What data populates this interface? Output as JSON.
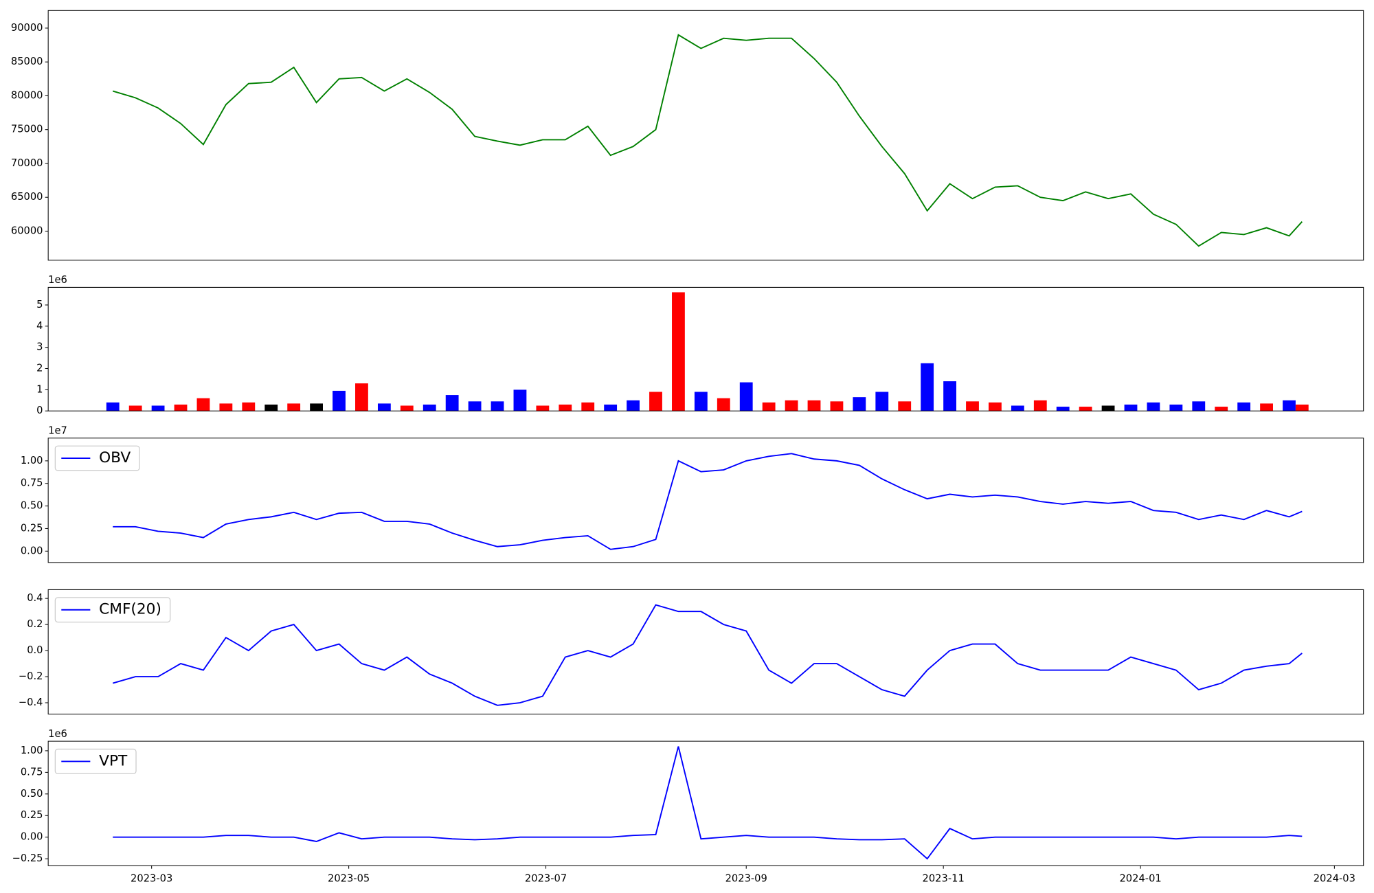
{
  "chart_data": [
    {
      "type": "line",
      "x": [
        "2023-02-17",
        "2023-02-24",
        "2023-03-03",
        "2023-03-10",
        "2023-03-17",
        "2023-03-24",
        "2023-03-31",
        "2023-04-07",
        "2023-04-14",
        "2023-04-21",
        "2023-04-28",
        "2023-05-05",
        "2023-05-12",
        "2023-05-19",
        "2023-05-26",
        "2023-06-02",
        "2023-06-09",
        "2023-06-16",
        "2023-06-23",
        "2023-06-30",
        "2023-07-07",
        "2023-07-14",
        "2023-07-21",
        "2023-07-28",
        "2023-08-04",
        "2023-08-11",
        "2023-08-18",
        "2023-08-25",
        "2023-09-01",
        "2023-09-08",
        "2023-09-15",
        "2023-09-22",
        "2023-09-29",
        "2023-10-06",
        "2023-10-13",
        "2023-10-20",
        "2023-10-27",
        "2023-11-03",
        "2023-11-10",
        "2023-11-17",
        "2023-11-24",
        "2023-12-01",
        "2023-12-08",
        "2023-12-15",
        "2023-12-22",
        "2023-12-29",
        "2024-01-05",
        "2024-01-12",
        "2024-01-19",
        "2024-01-26",
        "2024-02-02",
        "2024-02-09",
        "2024-02-16",
        "2024-02-20"
      ],
      "series": [
        {
          "color": "green",
          "values": [
            80700,
            79700,
            78200,
            75900,
            72800,
            78700,
            81800,
            82000,
            84200,
            79000,
            82500,
            82700,
            80700,
            82500,
            80500,
            78000,
            74000,
            73300,
            72700,
            73500,
            73500,
            75500,
            71200,
            72500,
            75000,
            89000,
            87000,
            88500,
            88200,
            88500,
            88500,
            85500,
            82000,
            77000,
            72500,
            68500,
            63000,
            67000,
            64800,
            66500,
            66700,
            65000,
            64500,
            65800,
            64800,
            65500,
            62500,
            61000,
            57800,
            59800,
            59500,
            60500,
            59300,
            61400
          ]
        }
      ],
      "xlim": [
        "2023-01-28",
        "2024-03-10"
      ],
      "ylim": [
        55700,
        92600
      ],
      "yticks": [
        60000,
        65000,
        70000,
        75000,
        80000,
        85000,
        90000
      ]
    },
    {
      "type": "bar",
      "offset_label": "1e6",
      "x": [
        "2023-02-17",
        "2023-02-24",
        "2023-03-03",
        "2023-03-10",
        "2023-03-17",
        "2023-03-24",
        "2023-03-31",
        "2023-04-07",
        "2023-04-14",
        "2023-04-21",
        "2023-04-28",
        "2023-05-05",
        "2023-05-12",
        "2023-05-19",
        "2023-05-26",
        "2023-06-02",
        "2023-06-09",
        "2023-06-16",
        "2023-06-23",
        "2023-06-30",
        "2023-07-07",
        "2023-07-14",
        "2023-07-21",
        "2023-07-28",
        "2023-08-04",
        "2023-08-11",
        "2023-08-18",
        "2023-08-25",
        "2023-09-01",
        "2023-09-08",
        "2023-09-15",
        "2023-09-22",
        "2023-09-29",
        "2023-10-06",
        "2023-10-13",
        "2023-10-20",
        "2023-10-27",
        "2023-11-03",
        "2023-11-10",
        "2023-11-17",
        "2023-11-24",
        "2023-12-01",
        "2023-12-08",
        "2023-12-15",
        "2023-12-22",
        "2023-12-29",
        "2024-01-05",
        "2024-01-12",
        "2024-01-19",
        "2024-01-26",
        "2024-02-02",
        "2024-02-09",
        "2024-02-16",
        "2024-02-20"
      ],
      "values": [
        0.4,
        0.25,
        0.25,
        0.3,
        0.6,
        0.35,
        0.4,
        0.3,
        0.35,
        0.35,
        0.95,
        1.3,
        0.35,
        0.25,
        0.3,
        0.75,
        0.45,
        0.45,
        1.0,
        0.25,
        0.3,
        0.4,
        0.3,
        0.5,
        0.9,
        5.6,
        0.9,
        0.6,
        1.35,
        0.4,
        0.5,
        0.5,
        0.45,
        0.65,
        0.9,
        0.45,
        2.25,
        1.4,
        0.45,
        0.4,
        0.25,
        0.5,
        0.2,
        0.2,
        0.25,
        0.3,
        0.4,
        0.3,
        0.45,
        0.2,
        0.4,
        0.35,
        0.5,
        0.3
      ],
      "colors": [
        "blue",
        "red",
        "blue",
        "red",
        "red",
        "red",
        "red",
        "black",
        "red",
        "black",
        "blue",
        "red",
        "blue",
        "red",
        "blue",
        "blue",
        "blue",
        "blue",
        "blue",
        "red",
        "red",
        "red",
        "blue",
        "blue",
        "red",
        "red",
        "blue",
        "red",
        "blue",
        "red",
        "red",
        "red",
        "red",
        "blue",
        "blue",
        "red",
        "blue",
        "blue",
        "red",
        "red",
        "blue",
        "red",
        "blue",
        "red",
        "black",
        "blue",
        "blue",
        "blue",
        "blue",
        "red",
        "blue",
        "red",
        "blue",
        "red"
      ],
      "xlim": [
        "2023-01-28",
        "2024-03-10"
      ],
      "ylim": [
        0,
        5.83
      ],
      "yticks": [
        0,
        1,
        2,
        3,
        4,
        5
      ]
    },
    {
      "type": "line",
      "offset_label": "1e7",
      "legend": "upper left",
      "x": [
        "2023-02-17",
        "2023-02-24",
        "2023-03-03",
        "2023-03-10",
        "2023-03-17",
        "2023-03-24",
        "2023-03-31",
        "2023-04-07",
        "2023-04-14",
        "2023-04-21",
        "2023-04-28",
        "2023-05-05",
        "2023-05-12",
        "2023-05-19",
        "2023-05-26",
        "2023-06-02",
        "2023-06-09",
        "2023-06-16",
        "2023-06-23",
        "2023-06-30",
        "2023-07-07",
        "2023-07-14",
        "2023-07-21",
        "2023-07-28",
        "2023-08-04",
        "2023-08-11",
        "2023-08-18",
        "2023-08-25",
        "2023-09-01",
        "2023-09-08",
        "2023-09-15",
        "2023-09-22",
        "2023-09-29",
        "2023-10-06",
        "2023-10-13",
        "2023-10-20",
        "2023-10-27",
        "2023-11-03",
        "2023-11-10",
        "2023-11-17",
        "2023-11-24",
        "2023-12-01",
        "2023-12-08",
        "2023-12-15",
        "2023-12-22",
        "2023-12-29",
        "2024-01-05",
        "2024-01-12",
        "2024-01-19",
        "2024-01-26",
        "2024-02-02",
        "2024-02-09",
        "2024-02-16",
        "2024-02-20"
      ],
      "series": [
        {
          "name": "OBV",
          "color": "blue",
          "values": [
            0.27,
            0.27,
            0.22,
            0.2,
            0.15,
            0.3,
            0.35,
            0.38,
            0.43,
            0.35,
            0.42,
            0.43,
            0.33,
            0.33,
            0.3,
            0.2,
            0.12,
            0.05,
            0.07,
            0.12,
            0.15,
            0.17,
            0.02,
            0.05,
            0.13,
            1.0,
            0.88,
            0.9,
            1.0,
            1.05,
            1.08,
            1.02,
            1.0,
            0.95,
            0.8,
            0.68,
            0.58,
            0.63,
            0.6,
            0.62,
            0.6,
            0.55,
            0.52,
            0.55,
            0.53,
            0.55,
            0.45,
            0.43,
            0.35,
            0.4,
            0.35,
            0.45,
            0.38,
            0.44
          ]
        }
      ],
      "xlim": [
        "2023-01-28",
        "2024-03-10"
      ],
      "ylim": [
        -0.126,
        1.252
      ],
      "yticks": [
        {
          "value": 0,
          "label": "0.00"
        },
        {
          "value": 0.25,
          "label": "0.25"
        },
        {
          "value": 0.5,
          "label": "0.50"
        },
        {
          "value": 0.75,
          "label": "0.75"
        },
        {
          "value": 1,
          "label": "1.00"
        }
      ]
    },
    {
      "type": "line",
      "legend": "upper left",
      "x": [
        "2023-02-17",
        "2023-02-24",
        "2023-03-03",
        "2023-03-10",
        "2023-03-17",
        "2023-03-24",
        "2023-03-31",
        "2023-04-07",
        "2023-04-14",
        "2023-04-21",
        "2023-04-28",
        "2023-05-05",
        "2023-05-12",
        "2023-05-19",
        "2023-05-26",
        "2023-06-02",
        "2023-06-09",
        "2023-06-16",
        "2023-06-23",
        "2023-06-30",
        "2023-07-07",
        "2023-07-14",
        "2023-07-21",
        "2023-07-28",
        "2023-08-04",
        "2023-08-11",
        "2023-08-18",
        "2023-08-25",
        "2023-09-01",
        "2023-09-08",
        "2023-09-15",
        "2023-09-22",
        "2023-09-29",
        "2023-10-06",
        "2023-10-13",
        "2023-10-20",
        "2023-10-27",
        "2023-11-03",
        "2023-11-10",
        "2023-11-17",
        "2023-11-24",
        "2023-12-01",
        "2023-12-08",
        "2023-12-15",
        "2023-12-22",
        "2023-12-29",
        "2024-01-05",
        "2024-01-12",
        "2024-01-19",
        "2024-01-26",
        "2024-02-02",
        "2024-02-09",
        "2024-02-16",
        "2024-02-20"
      ],
      "series": [
        {
          "name": "CMF(20)",
          "color": "blue",
          "values": [
            -0.25,
            -0.2,
            -0.2,
            -0.1,
            -0.15,
            0.1,
            0,
            0.15,
            0.2,
            0,
            0.05,
            -0.1,
            -0.15,
            -0.05,
            -0.18,
            -0.25,
            -0.35,
            -0.42,
            -0.4,
            -0.35,
            -0.05,
            0,
            -0.05,
            0.05,
            0.35,
            0.3,
            0.3,
            0.2,
            0.15,
            -0.15,
            -0.25,
            -0.1,
            -0.1,
            -0.2,
            -0.3,
            -0.35,
            -0.15,
            0,
            0.05,
            0.05,
            -0.1,
            -0.15,
            -0.15,
            -0.15,
            -0.15,
            -0.05,
            -0.1,
            -0.15,
            -0.3,
            -0.25,
            -0.15,
            -0.12,
            -0.1,
            -0.02
          ]
        }
      ],
      "xlim": [
        "2023-01-28",
        "2024-03-10"
      ],
      "ylim": [
        -0.487,
        0.467
      ],
      "yticks": [
        {
          "value": -0.4,
          "label": "−0.4"
        },
        {
          "value": -0.2,
          "label": "−0.2"
        },
        {
          "value": 0,
          "label": "0.0"
        },
        0.2,
        0.4
      ]
    },
    {
      "type": "line",
      "offset_label": "1e6",
      "legend": "upper left",
      "x": [
        "2023-02-17",
        "2023-02-24",
        "2023-03-03",
        "2023-03-10",
        "2023-03-17",
        "2023-03-24",
        "2023-03-31",
        "2023-04-07",
        "2023-04-14",
        "2023-04-21",
        "2023-04-28",
        "2023-05-05",
        "2023-05-12",
        "2023-05-19",
        "2023-05-26",
        "2023-06-02",
        "2023-06-09",
        "2023-06-16",
        "2023-06-23",
        "2023-06-30",
        "2023-07-07",
        "2023-07-14",
        "2023-07-21",
        "2023-07-28",
        "2023-08-04",
        "2023-08-11",
        "2023-08-18",
        "2023-08-25",
        "2023-09-01",
        "2023-09-08",
        "2023-09-15",
        "2023-09-22",
        "2023-09-29",
        "2023-10-06",
        "2023-10-13",
        "2023-10-20",
        "2023-10-27",
        "2023-11-03",
        "2023-11-10",
        "2023-11-17",
        "2023-11-24",
        "2023-12-01",
        "2023-12-08",
        "2023-12-15",
        "2023-12-22",
        "2023-12-29",
        "2024-01-05",
        "2024-01-12",
        "2024-01-19",
        "2024-01-26",
        "2024-02-02",
        "2024-02-09",
        "2024-02-16",
        "2024-02-20"
      ],
      "series": [
        {
          "name": "VPT",
          "color": "blue",
          "values": [
            0,
            0,
            0,
            0,
            0,
            0.02,
            0.02,
            0,
            0,
            -0.05,
            0.05,
            -0.02,
            0,
            0,
            0,
            -0.02,
            -0.03,
            -0.02,
            0,
            0,
            0,
            0,
            0,
            0.02,
            0.03,
            1.05,
            -0.02,
            0,
            0.02,
            0,
            0,
            0,
            -0.02,
            -0.03,
            -0.03,
            -0.02,
            -0.25,
            0.1,
            -0.02,
            0,
            0,
            0,
            0,
            0,
            0,
            0,
            0,
            -0.02,
            0,
            0,
            0,
            0,
            0.02,
            0.01
          ]
        }
      ],
      "xlim": [
        "2023-01-28",
        "2024-03-10"
      ],
      "ylim": [
        -0.33,
        1.11
      ],
      "yticks": [
        {
          "value": -0.25,
          "label": "−0.25"
        },
        {
          "value": 0,
          "label": "0.00"
        },
        {
          "value": 0.25,
          "label": "0.25"
        },
        {
          "value": 0.5,
          "label": "0.50"
        },
        {
          "value": 0.75,
          "label": "0.75"
        },
        {
          "value": 1,
          "label": "1.00"
        }
      ],
      "xticks": [
        {
          "value": "2023-03-01",
          "label": "2023-03"
        },
        {
          "value": "2023-05-01",
          "label": "2023-05"
        },
        {
          "value": "2023-07-01",
          "label": "2023-07"
        },
        {
          "value": "2023-09-01",
          "label": "2023-09"
        },
        {
          "value": "2023-11-01",
          "label": "2023-11"
        },
        {
          "value": "2024-01-01",
          "label": "2024-01"
        },
        {
          "value": "2024-03-01",
          "label": "2024-03"
        }
      ]
    }
  ]
}
